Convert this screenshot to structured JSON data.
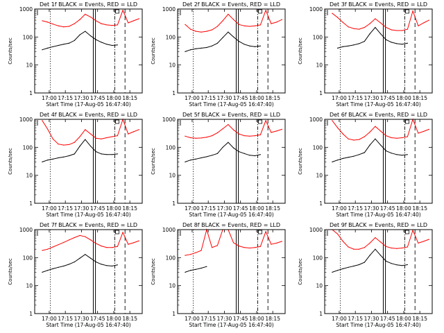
{
  "chart_data": [
    {
      "type": "line",
      "title": "Det 1f BLACK = Events, RED = LLD",
      "xlabel": "Start Time (17-Aug-05 16:47:40)",
      "ylabel": "Counts/sec",
      "xticks": [
        "17:00",
        "17:15",
        "17:30",
        "17:45",
        "18:00",
        "18:15"
      ],
      "yticks": [
        "1",
        "10",
        "100",
        "1000"
      ],
      "ylim": [
        1,
        1000
      ],
      "yscale": "log",
      "series": [
        {
          "name": "LLD",
          "color": "#ff0000",
          "values": [
            380,
            340,
            290,
            250,
            230,
            240,
            300,
            420,
            650,
            520,
            380,
            300,
            270,
            260,
            270,
            900,
            320,
            380,
            450
          ]
        },
        {
          "name": "Events",
          "color": "#000000",
          "values": [
            35,
            40,
            45,
            50,
            55,
            60,
            75,
            120,
            160,
            110,
            80,
            65,
            55,
            50,
            52,
            null,
            null,
            null,
            null
          ]
        }
      ]
    },
    {
      "type": "line",
      "title": "Det 2f BLACK = Events, RED = LLD",
      "xlabel": "Start Time (17-Aug-05 16:47:40)",
      "ylabel": "Counts/sec",
      "xticks": [
        "17:00",
        "17:15",
        "17:30",
        "17:45",
        "18:00",
        "18:15"
      ],
      "yticks": [
        "1",
        "10",
        "100",
        "1000"
      ],
      "ylim": [
        1,
        1000
      ],
      "yscale": "log",
      "series": [
        {
          "name": "LLD",
          "color": "#ff0000",
          "values": [
            280,
            190,
            160,
            150,
            160,
            180,
            240,
            380,
            650,
            420,
            280,
            250,
            240,
            250,
            270,
            900,
            300,
            340,
            420
          ]
        },
        {
          "name": "Events",
          "color": "#000000",
          "values": [
            30,
            35,
            38,
            40,
            42,
            48,
            60,
            95,
            150,
            100,
            70,
            55,
            48,
            45,
            48,
            null,
            null,
            null,
            null
          ]
        }
      ]
    },
    {
      "type": "line",
      "title": "Det 3f BLACK = Events, RED = LLD",
      "xlabel": "Start Time (17-Aug-05 16:47:40)",
      "ylabel": "Counts/sec",
      "xticks": [
        "17:00",
        "17:15",
        "17:30",
        "17:45",
        "18:00",
        "18:15"
      ],
      "yticks": [
        "1",
        "10",
        "100",
        "1000"
      ],
      "ylim": [
        1,
        1000
      ],
      "yscale": "log",
      "series": [
        {
          "name": "LLD",
          "color": "#ff0000",
          "values": [
            700,
            500,
            330,
            230,
            200,
            190,
            220,
            300,
            450,
            320,
            220,
            180,
            170,
            170,
            190,
            850,
            250,
            320,
            400
          ]
        },
        {
          "name": "Events",
          "color": "#000000",
          "values": [
            null,
            40,
            45,
            48,
            52,
            58,
            70,
            130,
            220,
            130,
            80,
            65,
            58,
            55,
            60,
            null,
            null,
            null,
            null
          ]
        }
      ]
    },
    {
      "type": "line",
      "title": "Det 4f BLACK = Events, RED = LLD",
      "xlabel": "Start Time (17-Aug-05 16:47:40)",
      "ylabel": "Counts/sec",
      "xticks": [
        "17:00",
        "17:15",
        "17:30",
        "17:45",
        "18:00",
        "18:15"
      ],
      "yticks": [
        "1",
        "10",
        "100",
        "1000"
      ],
      "ylim": [
        1,
        1000
      ],
      "yscale": "log",
      "series": [
        {
          "name": "LLD",
          "color": "#ff0000",
          "values": [
            900,
            450,
            200,
            130,
            120,
            125,
            150,
            240,
            430,
            300,
            210,
            200,
            220,
            240,
            260,
            1000,
            300,
            360,
            430
          ]
        },
        {
          "name": "Events",
          "color": "#000000",
          "values": [
            30,
            35,
            38,
            42,
            45,
            50,
            58,
            110,
            190,
            110,
            70,
            58,
            55,
            55,
            58,
            null,
            null,
            null,
            null
          ]
        }
      ]
    },
    {
      "type": "line",
      "title": "Det 5f BLACK = Events, RED = LLD",
      "xlabel": "Start Time (17-Aug-05 16:47:40)",
      "ylabel": "Counts/sec",
      "xticks": [
        "17:00",
        "17:15",
        "17:30",
        "17:45",
        "18:00",
        "18:15"
      ],
      "yticks": [
        "1",
        "10",
        "100",
        "1000"
      ],
      "ylim": [
        1,
        1000
      ],
      "yscale": "log",
      "series": [
        {
          "name": "LLD",
          "color": "#ff0000",
          "values": [
            250,
            220,
            210,
            215,
            230,
            260,
            330,
            460,
            650,
            420,
            300,
            260,
            250,
            260,
            280,
            900,
            340,
            380,
            440
          ]
        },
        {
          "name": "Events",
          "color": "#000000",
          "values": [
            30,
            35,
            38,
            42,
            46,
            52,
            60,
            100,
            150,
            95,
            70,
            60,
            52,
            50,
            55,
            null,
            null,
            null,
            null
          ]
        }
      ]
    },
    {
      "type": "line",
      "title": "Det 6f BLACK = Events, RED = LLD",
      "xlabel": "Start Time (17-Aug-05 16:47:40)",
      "ylabel": "Counts/sec",
      "xticks": [
        "17:00",
        "17:15",
        "17:30",
        "17:45",
        "18:00",
        "18:15"
      ],
      "yticks": [
        "1",
        "10",
        "100",
        "1000"
      ],
      "ylim": [
        1,
        1000
      ],
      "yscale": "log",
      "series": [
        {
          "name": "LLD",
          "color": "#ff0000",
          "values": [
            900,
            500,
            300,
            200,
            180,
            190,
            240,
            350,
            560,
            380,
            260,
            220,
            210,
            220,
            240,
            1000,
            320,
            370,
            440
          ]
        },
        {
          "name": "Events",
          "color": "#000000",
          "values": [
            30,
            35,
            40,
            44,
            48,
            55,
            65,
            120,
            200,
            120,
            75,
            62,
            55,
            52,
            55,
            null,
            null,
            null,
            null
          ]
        }
      ]
    },
    {
      "type": "line",
      "title": "Det 7f BLACK = Events, RED = LLD",
      "xlabel": "Start Time (17-Aug-05 16:47:40)",
      "ylabel": "Counts/sec",
      "xticks": [
        "17:00",
        "17:15",
        "17:30",
        "17:45",
        "18:00",
        "18:15"
      ],
      "yticks": [
        "1",
        "10",
        "100",
        "1000"
      ],
      "ylim": [
        1,
        1000
      ],
      "yscale": "log",
      "series": [
        {
          "name": "LLD",
          "color": "#ff0000",
          "values": [
            180,
            200,
            240,
            290,
            350,
            430,
            520,
            620,
            560,
            430,
            320,
            260,
            230,
            230,
            250,
            800,
            300,
            340,
            400
          ]
        },
        {
          "name": "Events",
          "color": "#000000",
          "values": [
            30,
            35,
            40,
            45,
            50,
            58,
            70,
            95,
            130,
            95,
            70,
            58,
            52,
            50,
            55,
            null,
            null,
            null,
            null
          ]
        }
      ]
    },
    {
      "type": "line",
      "title": "Det 8f BLACK = Events, RED = LLD",
      "xlabel": "Start Time (17-Aug-05 16:47:40)",
      "ylabel": "Counts/sec",
      "xticks": [
        "17:00",
        "17:15",
        "17:30",
        "17:45",
        "18:00",
        "18:15"
      ],
      "yticks": [
        "1",
        "10",
        "100",
        "1000"
      ],
      "ylim": [
        1,
        1000
      ],
      "yscale": "log",
      "series": [
        {
          "name": "LLD",
          "color": "#ff0000",
          "values": [
            120,
            130,
            150,
            180,
            1000,
            230,
            270,
            1000,
            1000,
            340,
            260,
            230,
            220,
            230,
            250,
            850,
            300,
            330,
            380
          ]
        },
        {
          "name": "Events",
          "color": "#000000",
          "values": [
            30,
            35,
            38,
            42,
            48,
            null,
            null,
            null,
            null,
            null,
            null,
            null,
            null,
            null,
            null,
            null,
            null,
            null,
            null
          ]
        }
      ]
    },
    {
      "type": "line",
      "title": "Det 9f BLACK = Events, RED = LLD",
      "xlabel": "Start Time (17-Aug-05 16:47:40)",
      "ylabel": "Counts/sec",
      "xticks": [
        "17:00",
        "17:15",
        "17:30",
        "17:45",
        "18:00",
        "18:15"
      ],
      "yticks": [
        "1",
        "10",
        "100",
        "1000"
      ],
      "ylim": [
        1,
        1000
      ],
      "yscale": "log",
      "series": [
        {
          "name": "LLD",
          "color": "#ff0000",
          "values": [
            1000,
            700,
            380,
            240,
            200,
            200,
            230,
            330,
            520,
            360,
            250,
            220,
            210,
            220,
            240,
            950,
            330,
            380,
            450
          ]
        },
        {
          "name": "Events",
          "color": "#000000",
          "values": [
            30,
            35,
            40,
            45,
            50,
            56,
            68,
            120,
            200,
            120,
            75,
            62,
            55,
            52,
            56,
            null,
            null,
            null,
            null
          ]
        }
      ]
    }
  ]
}
